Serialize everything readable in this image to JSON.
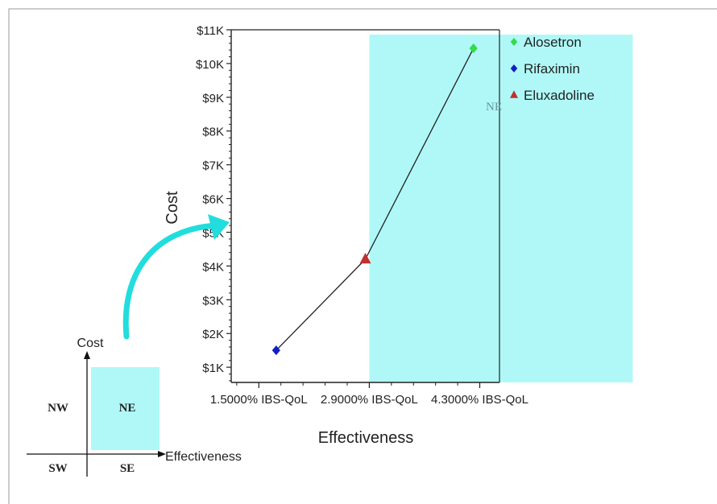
{
  "chart_data": {
    "type": "scatter",
    "xlabel": "Effectiveness",
    "ylabel": "Cost",
    "x_ticks": [
      {
        "value": 1.5,
        "label": "1.5000% IBS-QoL"
      },
      {
        "value": 2.9,
        "label": "2.9000% IBS-QoL"
      },
      {
        "value": 4.3,
        "label": "4.3000% IBS-QoL"
      }
    ],
    "y_ticks": [
      {
        "value": 1000,
        "label": "$1K"
      },
      {
        "value": 2000,
        "label": "$2K"
      },
      {
        "value": 3000,
        "label": "$3K"
      },
      {
        "value": 4000,
        "label": "$4K"
      },
      {
        "value": 5000,
        "label": "$5K"
      },
      {
        "value": 6000,
        "label": "$6K"
      },
      {
        "value": 7000,
        "label": "$7K"
      },
      {
        "value": 8000,
        "label": "$8K"
      },
      {
        "value": 9000,
        "label": "$9K"
      },
      {
        "value": 10000,
        "label": "$10K"
      },
      {
        "value": 11000,
        "label": "$11K"
      }
    ],
    "xlim": [
      1.15,
      4.55
    ],
    "ylim": [
      550,
      11000
    ],
    "series": [
      {
        "name": "Alosetron",
        "x": 4.22,
        "y": 10450,
        "marker": "diamond",
        "color": "#33dd44"
      },
      {
        "name": "Rifaximin",
        "x": 1.72,
        "y": 1500,
        "marker": "diamond",
        "color": "#1020c0"
      },
      {
        "name": "Eluxadoline",
        "x": 2.85,
        "y": 4200,
        "marker": "triangle",
        "color": "#c03030"
      }
    ],
    "frontier_order": [
      "Rifaximin",
      "Eluxadoline",
      "Alosetron"
    ],
    "region": {
      "label": "NE",
      "x_from": 2.9,
      "color": "#b0f8f8"
    },
    "legend_position": "right",
    "grid": false
  },
  "inset": {
    "y_axis_label": "Cost",
    "x_axis_label": "Effectiveness",
    "quadrants": {
      "nw": "NW",
      "ne": "NE",
      "sw": "SW",
      "se": "SE"
    }
  },
  "colors": {
    "region_fill": "#b0f8f8",
    "arrow": "#22dddd",
    "line": "#222222"
  }
}
